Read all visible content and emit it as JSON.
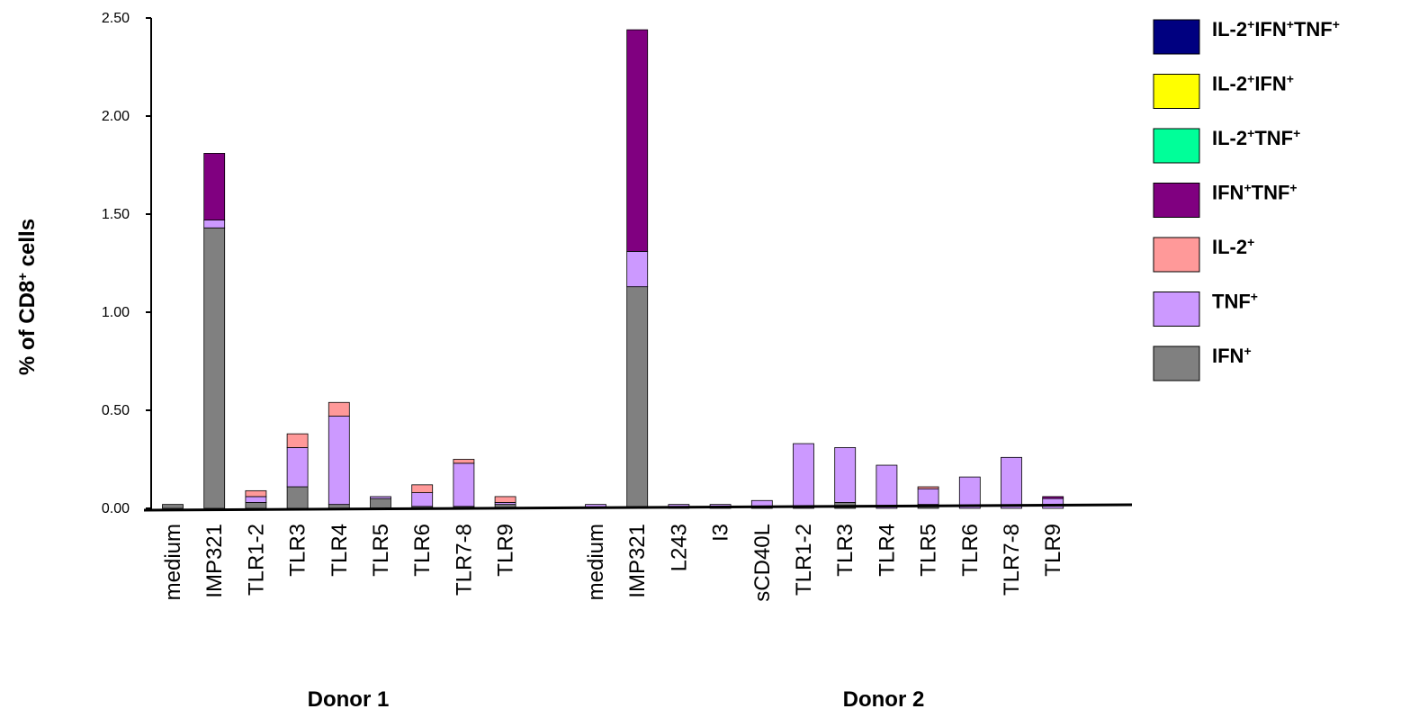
{
  "chart_data": {
    "type": "bar",
    "stacked": true,
    "ylabel": "% of CD8+ cells",
    "ylim": [
      0,
      2.5
    ],
    "yticks": [
      "0.00",
      "0.50",
      "1.00",
      "1.50",
      "2.00",
      "2.50"
    ],
    "grid": false,
    "legend_position": "top-right",
    "groups": [
      {
        "label": "Donor 1",
        "categories": [
          "medium",
          "IMP321",
          "TLR1-2",
          "TLR3",
          "TLR4",
          "TLR5",
          "TLR6",
          "TLR7-8",
          "TLR9"
        ]
      },
      {
        "label": "Donor 2",
        "categories": [
          "medium",
          "IMP321",
          "L243",
          "I3",
          "sCD40L",
          "TLR1-2",
          "TLR3",
          "TLR4",
          "TLR5",
          "TLR6",
          "TLR7-8",
          "TLR9"
        ]
      }
    ],
    "series": [
      {
        "name": "IFN+",
        "color": "#808080",
        "values": [
          0.02,
          1.43,
          0.03,
          0.11,
          0.02,
          0.05,
          0.01,
          0.01,
          0.02,
          0.0,
          1.13,
          0.0,
          0.0,
          0.0,
          0.0,
          0.03,
          0.0,
          0.02,
          0.0,
          0.0,
          0.0
        ]
      },
      {
        "name": "TNF+",
        "color": "#cc99ff",
        "values": [
          0.0,
          0.04,
          0.03,
          0.2,
          0.45,
          0.01,
          0.07,
          0.22,
          0.01,
          0.02,
          0.18,
          0.02,
          0.02,
          0.04,
          0.33,
          0.28,
          0.22,
          0.08,
          0.16,
          0.26,
          0.05
        ]
      },
      {
        "name": "IL-2+",
        "color": "#ff9999",
        "values": [
          0.0,
          0.0,
          0.03,
          0.07,
          0.07,
          0.0,
          0.04,
          0.02,
          0.03,
          0.0,
          0.0,
          0.0,
          0.0,
          0.0,
          0.0,
          0.0,
          0.0,
          0.01,
          0.0,
          0.0,
          0.0
        ]
      },
      {
        "name": "IFN+TNF+",
        "color": "#800080",
        "values": [
          0.0,
          0.34,
          0.0,
          0.0,
          0.0,
          0.0,
          0.0,
          0.0,
          0.0,
          0.0,
          1.13,
          0.0,
          0.0,
          0.0,
          0.0,
          0.0,
          0.0,
          0.0,
          0.0,
          0.0,
          0.01
        ]
      },
      {
        "name": "IL-2+TNF+",
        "color": "#00ff99",
        "values": [
          0,
          0,
          0,
          0,
          0,
          0,
          0,
          0,
          0,
          0,
          0,
          0,
          0,
          0,
          0,
          0,
          0,
          0,
          0,
          0,
          0
        ]
      },
      {
        "name": "IL-2+IFN+",
        "color": "#ffff00",
        "values": [
          0,
          0,
          0,
          0,
          0,
          0,
          0,
          0,
          0,
          0,
          0,
          0,
          0,
          0,
          0,
          0,
          0,
          0,
          0,
          0,
          0
        ]
      },
      {
        "name": "IL-2+IFN+TNF+",
        "color": "#000080",
        "values": [
          0,
          0,
          0,
          0,
          0,
          0,
          0,
          0,
          0,
          0,
          0,
          0,
          0,
          0,
          0,
          0,
          0,
          0,
          0,
          0,
          0
        ]
      }
    ],
    "legend": [
      {
        "base": "IL-2",
        "sup": "+",
        "base2": "IFN",
        "sup2": "+",
        "base3": "TNF",
        "sup3": "+",
        "color": "#000080"
      },
      {
        "base": "IL-2",
        "sup": "+",
        "base2": "IFN",
        "sup2": "+",
        "base3": "",
        "sup3": "",
        "color": "#ffff00"
      },
      {
        "base": "IL-2",
        "sup": "+",
        "base2": "TNF",
        "sup2": "+",
        "base3": "",
        "sup3": "",
        "color": "#00ff99"
      },
      {
        "base": "IFN",
        "sup": "+",
        "base2": "TNF",
        "sup2": "+",
        "base3": "",
        "sup3": "",
        "color": "#800080"
      },
      {
        "base": "IL-2",
        "sup": "+",
        "base2": "",
        "sup2": "",
        "base3": "",
        "sup3": "",
        "color": "#ff9999"
      },
      {
        "base": "TNF",
        "sup": "+",
        "base2": "",
        "sup2": "",
        "base3": "",
        "sup3": "",
        "color": "#cc99ff"
      },
      {
        "base": "IFN",
        "sup": "+",
        "base2": "",
        "sup2": "",
        "base3": "",
        "sup3": "",
        "color": "#808080"
      }
    ]
  }
}
